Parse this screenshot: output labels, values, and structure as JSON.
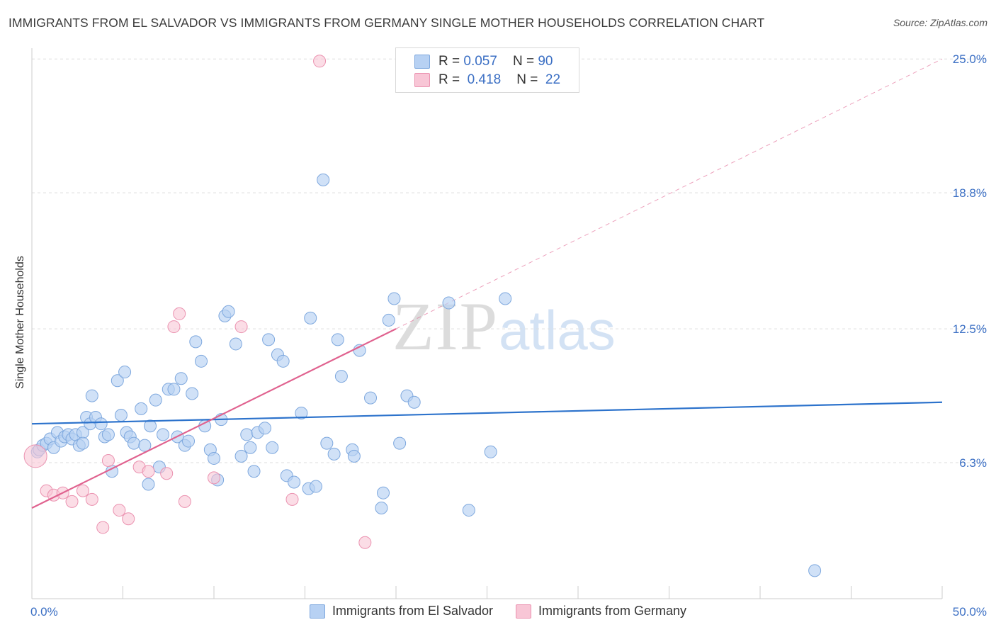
{
  "title": "IMMIGRANTS FROM EL SALVADOR VS IMMIGRANTS FROM GERMANY SINGLE MOTHER HOUSEHOLDS CORRELATION CHART",
  "source": "Source: ZipAtlas.com",
  "watermark": {
    "zip": "ZIP",
    "atlas": "atlas"
  },
  "legend": {
    "rows": [
      {
        "r_label": "R =",
        "r_value": "0.057",
        "n_label": "N =",
        "n_value": "90"
      },
      {
        "r_label": "R =",
        "r_value": "0.418",
        "n_label": "N =",
        "n_value": "22"
      }
    ]
  },
  "colors": {
    "blue_fill": "#b7d1f3",
    "blue_stroke": "#7ea8de",
    "blue_line": "#2d73cc",
    "pink_fill": "#f8c6d6",
    "pink_stroke": "#eb92b0",
    "pink_line": "#e0628f",
    "grid": "#dddddd",
    "tick_label": "#3b6fc4"
  },
  "chart_data": {
    "type": "scatter",
    "title": "IMMIGRANTS FROM EL SALVADOR VS IMMIGRANTS FROM GERMANY SINGLE MOTHER HOUSEHOLDS CORRELATION CHART",
    "xlabel": "",
    "ylabel": "Single Mother Households",
    "xlim": [
      0,
      50
    ],
    "ylim": [
      0,
      25.5
    ],
    "x_tick_labels": [
      "0.0%",
      "50.0%"
    ],
    "y_ticks": [
      6.3,
      12.5,
      18.8,
      25.0
    ],
    "y_tick_labels": [
      "6.3%",
      "12.5%",
      "18.8%",
      "25.0%"
    ],
    "grid": true,
    "legend_position": "top-center",
    "series": [
      {
        "name": "Immigrants from El Salvador",
        "color": "#b7d1f3",
        "r": 0.057,
        "n": 90,
        "trend": {
          "x0": 0,
          "y0": 8.1,
          "x1": 50,
          "y1": 9.1
        },
        "points": [
          [
            0.3,
            6.8
          ],
          [
            0.4,
            6.9
          ],
          [
            0.6,
            7.1
          ],
          [
            0.8,
            7.2
          ],
          [
            1.0,
            7.4
          ],
          [
            1.2,
            7.0
          ],
          [
            1.4,
            7.7
          ],
          [
            1.6,
            7.3
          ],
          [
            1.8,
            7.5
          ],
          [
            2.0,
            7.6
          ],
          [
            2.2,
            7.4
          ],
          [
            2.4,
            7.6
          ],
          [
            2.6,
            7.1
          ],
          [
            2.8,
            7.7
          ],
          [
            2.8,
            7.2
          ],
          [
            3.0,
            8.4
          ],
          [
            3.2,
            8.1
          ],
          [
            3.3,
            9.4
          ],
          [
            3.5,
            8.4
          ],
          [
            3.8,
            8.1
          ],
          [
            4.0,
            7.5
          ],
          [
            4.2,
            7.6
          ],
          [
            4.4,
            5.9
          ],
          [
            4.7,
            10.1
          ],
          [
            4.9,
            8.5
          ],
          [
            5.1,
            10.5
          ],
          [
            5.2,
            7.7
          ],
          [
            5.4,
            7.5
          ],
          [
            5.6,
            7.2
          ],
          [
            6.0,
            8.8
          ],
          [
            6.2,
            7.1
          ],
          [
            6.4,
            5.3
          ],
          [
            6.5,
            8.0
          ],
          [
            6.8,
            9.2
          ],
          [
            7.0,
            6.1
          ],
          [
            7.2,
            7.6
          ],
          [
            7.5,
            9.7
          ],
          [
            7.8,
            9.7
          ],
          [
            8.0,
            7.5
          ],
          [
            8.2,
            10.2
          ],
          [
            8.4,
            7.1
          ],
          [
            8.6,
            7.3
          ],
          [
            8.8,
            9.5
          ],
          [
            9.0,
            11.9
          ],
          [
            9.3,
            11.0
          ],
          [
            9.5,
            8.0
          ],
          [
            9.8,
            6.9
          ],
          [
            10.0,
            6.5
          ],
          [
            10.2,
            5.5
          ],
          [
            10.4,
            8.3
          ],
          [
            10.6,
            13.1
          ],
          [
            10.8,
            13.3
          ],
          [
            11.2,
            11.8
          ],
          [
            11.5,
            6.6
          ],
          [
            11.8,
            7.6
          ],
          [
            12.0,
            7.0
          ],
          [
            12.2,
            5.9
          ],
          [
            12.4,
            7.7
          ],
          [
            12.8,
            7.9
          ],
          [
            13.0,
            12.0
          ],
          [
            13.2,
            7.0
          ],
          [
            13.5,
            11.3
          ],
          [
            13.8,
            11.0
          ],
          [
            14.0,
            5.7
          ],
          [
            14.4,
            5.4
          ],
          [
            14.8,
            8.6
          ],
          [
            15.2,
            5.1
          ],
          [
            15.3,
            13.0
          ],
          [
            15.6,
            5.2
          ],
          [
            16.0,
            19.4
          ],
          [
            16.2,
            7.2
          ],
          [
            16.6,
            6.7
          ],
          [
            16.8,
            12.0
          ],
          [
            17.0,
            10.3
          ],
          [
            17.6,
            6.9
          ],
          [
            17.7,
            6.6
          ],
          [
            18.0,
            11.5
          ],
          [
            18.6,
            9.3
          ],
          [
            19.2,
            4.2
          ],
          [
            19.3,
            4.9
          ],
          [
            19.6,
            12.9
          ],
          [
            19.9,
            13.9
          ],
          [
            20.2,
            7.2
          ],
          [
            20.6,
            9.4
          ],
          [
            21.0,
            9.1
          ],
          [
            22.9,
            13.7
          ],
          [
            24.0,
            4.1
          ],
          [
            25.2,
            6.8
          ],
          [
            26.0,
            13.9
          ],
          [
            43.0,
            1.3
          ]
        ]
      },
      {
        "name": "Immigrants from Germany",
        "color": "#f8c6d6",
        "r": 0.418,
        "n": 22,
        "trend": {
          "x0": 0,
          "y0": 4.2,
          "x1": 20.0,
          "y1": 12.5
        },
        "trend_dashed_to": {
          "x": 50,
          "y": 25.0
        },
        "points": [
          [
            0.2,
            6.6
          ],
          [
            0.8,
            5.0
          ],
          [
            1.2,
            4.8
          ],
          [
            1.7,
            4.9
          ],
          [
            2.2,
            4.5
          ],
          [
            2.8,
            5.0
          ],
          [
            3.3,
            4.6
          ],
          [
            3.9,
            3.3
          ],
          [
            4.2,
            6.4
          ],
          [
            4.8,
            4.1
          ],
          [
            5.3,
            3.7
          ],
          [
            5.9,
            6.1
          ],
          [
            6.4,
            5.9
          ],
          [
            7.4,
            5.8
          ],
          [
            7.8,
            12.6
          ],
          [
            8.1,
            13.2
          ],
          [
            8.4,
            4.5
          ],
          [
            10.0,
            5.6
          ],
          [
            11.5,
            12.6
          ],
          [
            14.3,
            4.6
          ],
          [
            15.8,
            24.9
          ],
          [
            18.3,
            2.6
          ]
        ]
      }
    ]
  },
  "bottom_legend": [
    {
      "label": "Immigrants from El Salvador"
    },
    {
      "label": "Immigrants from Germany"
    }
  ]
}
